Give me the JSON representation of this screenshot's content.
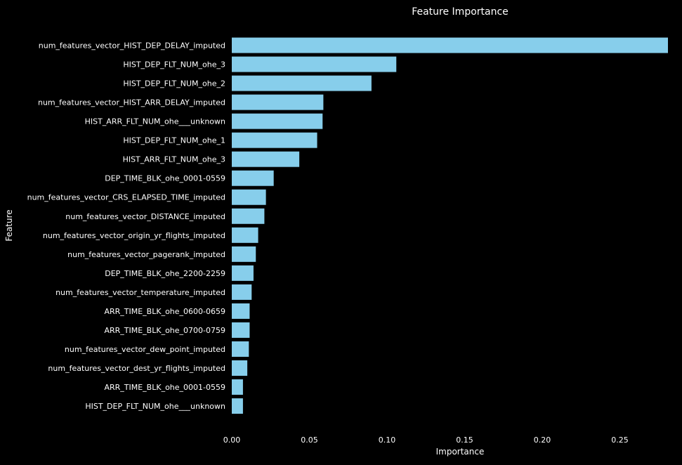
{
  "chart_data": {
    "type": "bar",
    "orientation": "horizontal",
    "title": "Feature Importance",
    "xlabel": "Importance",
    "ylabel": "Feature",
    "xlim": [
      0,
      0.281
    ],
    "xticks": [
      "0.00",
      "0.05",
      "0.10",
      "0.15",
      "0.20",
      "0.25"
    ],
    "grid": false,
    "bar_color": "#87CEEB",
    "background": "#000000",
    "text_color": "#FFFFFF",
    "categories": [
      "num_features_vector_HIST_DEP_DELAY_imputed",
      "HIST_DEP_FLT_NUM_ohe_3",
      "HIST_DEP_FLT_NUM_ohe_2",
      "num_features_vector_HIST_ARR_DELAY_imputed",
      "HIST_ARR_FLT_NUM_ohe___unknown",
      "HIST_DEP_FLT_NUM_ohe_1",
      "HIST_ARR_FLT_NUM_ohe_3",
      "DEP_TIME_BLK_ohe_0001-0559",
      "num_features_vector_CRS_ELAPSED_TIME_imputed",
      "num_features_vector_DISTANCE_imputed",
      "num_features_vector_origin_yr_flights_imputed",
      "num_features_vector_pagerank_imputed",
      "DEP_TIME_BLK_ohe_2200-2259",
      "num_features_vector_temperature_imputed",
      "ARR_TIME_BLK_ohe_0600-0659",
      "ARR_TIME_BLK_ohe_0700-0759",
      "num_features_vector_dew_point_imputed",
      "num_features_vector_dest_yr_flights_imputed",
      "ARR_TIME_BLK_ohe_0001-0559",
      "HIST_DEP_FLT_NUM_ohe___unknown"
    ],
    "values": [
      0.281,
      0.106,
      0.09,
      0.059,
      0.0585,
      0.055,
      0.0435,
      0.027,
      0.022,
      0.021,
      0.017,
      0.0155,
      0.014,
      0.0128,
      0.0115,
      0.0115,
      0.011,
      0.01,
      0.0072,
      0.0072
    ]
  }
}
